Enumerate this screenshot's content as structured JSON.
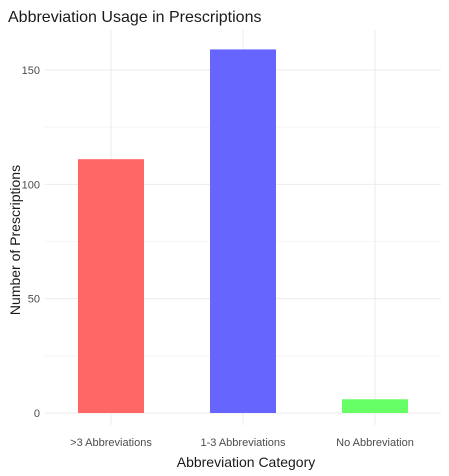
{
  "chart_data": {
    "type": "bar",
    "title": "Abbreviation Usage in Prescriptions",
    "xlabel": "Abbreviation Category",
    "ylabel": "Number of Prescriptions",
    "categories": [
      ">3 Abbreviations",
      "1-3 Abbreviations",
      "No Abbreviation"
    ],
    "values": [
      111,
      159,
      6
    ],
    "colors": [
      "#ff6666",
      "#6666ff",
      "#66ff66"
    ],
    "ylim": [
      0,
      165
    ],
    "yticks": [
      0,
      50,
      100,
      150
    ],
    "ytick_labels": [
      "0",
      "50",
      "100",
      "150"
    ],
    "grid": true,
    "legend": "none"
  }
}
